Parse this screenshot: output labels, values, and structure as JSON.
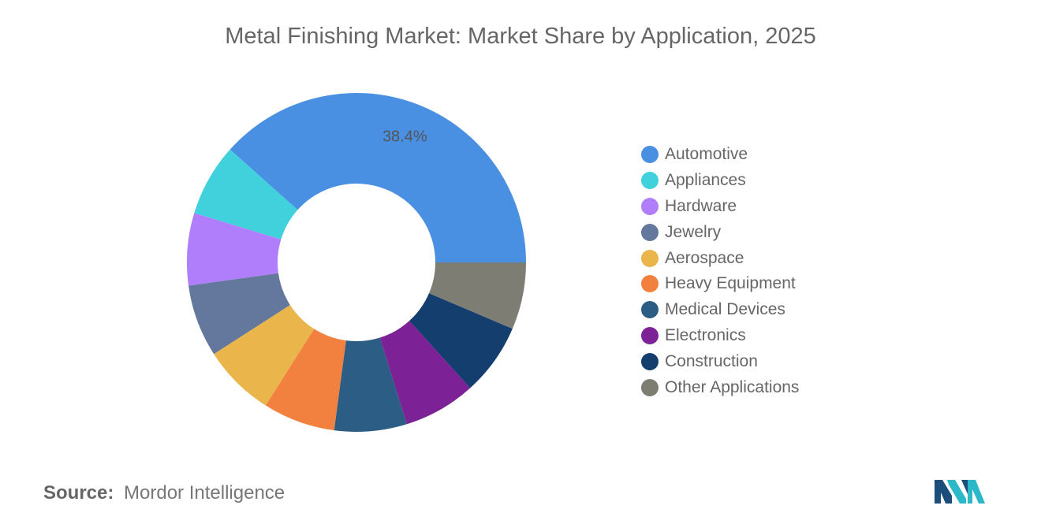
{
  "chart_data": {
    "type": "pie",
    "title": "Metal Finishing Market: Market Share by Application, 2025",
    "categories": [
      "Automotive",
      "Appliances",
      "Hardware",
      "Jewelry",
      "Aerospace",
      "Heavy Equipment",
      "Medical Devices",
      "Electronics",
      "Construction",
      "Other Applications"
    ],
    "values": [
      38.4,
      6.9,
      6.9,
      6.9,
      6.9,
      6.9,
      6.9,
      6.9,
      6.9,
      6.4
    ],
    "colors": [
      "#4A90E2",
      "#40D1DD",
      "#B07EFA",
      "#63789C",
      "#EAB54A",
      "#F2813F",
      "#2C5E85",
      "#7D2196",
      "#143E6E",
      "#7D7D74"
    ],
    "data_labels": [
      {
        "index": 0,
        "text": "38.4%"
      }
    ],
    "legend_position": "right",
    "donut": true
  },
  "source": {
    "label": "Source:",
    "text": "Mordor Intelligence"
  },
  "logo_icon": "mordor-intelligence-logo-icon"
}
